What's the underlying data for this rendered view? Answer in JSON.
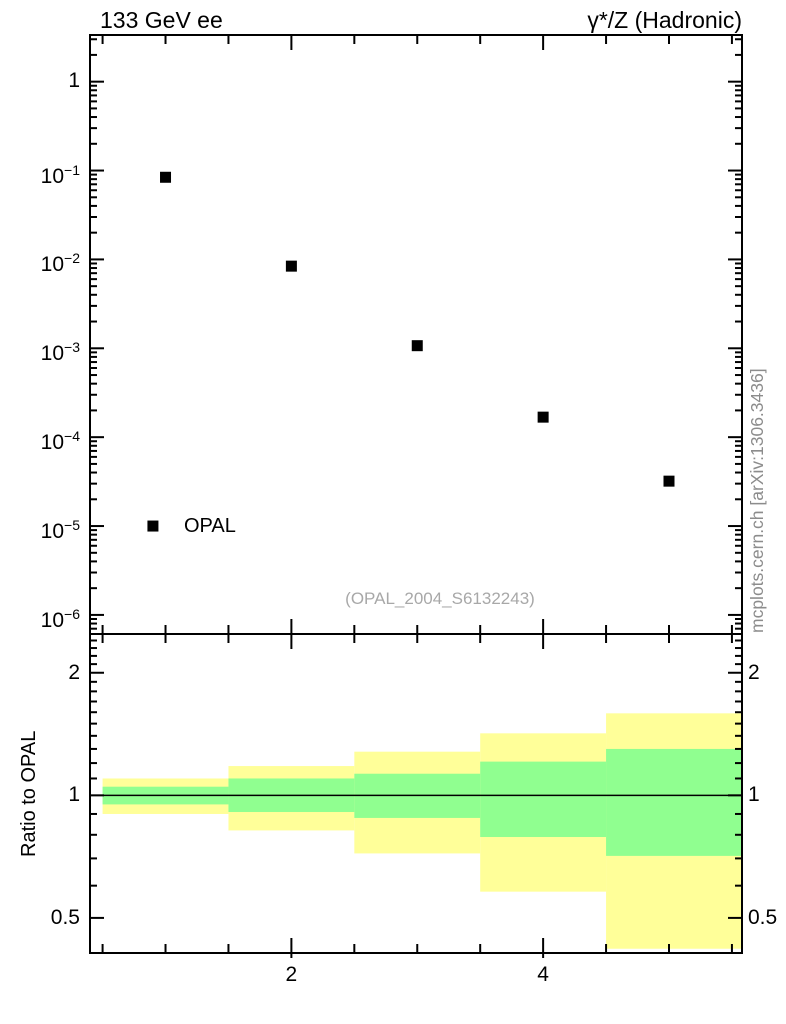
{
  "header": {
    "left_title": "133 GeV ee",
    "right_title": "γ*/Z (Hadronic)"
  },
  "watermark": "(OPAL_2004_S6132243)",
  "side_text": "mcplots.cern.ch [arXiv:1306.3436]",
  "legend": {
    "label": "OPAL",
    "marker": "filled-square"
  },
  "colors": {
    "marker": "#000000",
    "band_outer": "#ffff99",
    "band_inner": "#90ff90",
    "frame": "#000000",
    "gray_text": "#a8a8a8"
  },
  "chart_data": [
    {
      "type": "scatter",
      "title_left": "133 GeV ee",
      "title_right": "γ*/Z (Hadronic)",
      "xscale": "linear",
      "yscale": "log",
      "xlim": [
        0.4,
        5.58
      ],
      "ylim": [
        6.1e-07,
        3.35
      ],
      "grid": false,
      "legend_position": "inside-left-bottom",
      "series": [
        {
          "name": "OPAL",
          "marker": "filled-square",
          "x": [
            1,
            2,
            3,
            4,
            5
          ],
          "y": [
            0.084,
            0.0084,
            0.00107,
            0.000168,
            3.2e-05
          ]
        }
      ],
      "y_tick_exponents": [
        0,
        -1,
        -2,
        -3,
        -4,
        -5,
        -6
      ],
      "x_major_ticks": [
        2,
        4
      ],
      "x_minor_tick_step": 0.5,
      "legend_anchor": {
        "x": 0.9,
        "y": 1e-05
      }
    },
    {
      "type": "band-steps",
      "ylabel": "Ratio to OPAL",
      "xscale": "linear",
      "yscale": "log",
      "xlim": [
        0.4,
        5.58
      ],
      "ylim": [
        0.41,
        2.49
      ],
      "reference_line": 1.0,
      "x_major_ticks": [
        2,
        4
      ],
      "x_minor_tick_step": 0.5,
      "y_major_ticks": [
        {
          "value": 2,
          "label": "2"
        },
        {
          "value": 1,
          "label": "1"
        },
        {
          "value": 0.5,
          "label": "0.5"
        }
      ],
      "y_minor_ticks": [
        0.6,
        0.7,
        0.8,
        0.9,
        1.1,
        1.2,
        1.3,
        1.4,
        1.5,
        1.6,
        1.7,
        1.8,
        1.9,
        2.1,
        2.2,
        2.3,
        2.4
      ],
      "bands": [
        {
          "x0": 0.5,
          "x1": 1.5,
          "outer": [
            0.9,
            1.1
          ],
          "inner": [
            0.95,
            1.05
          ]
        },
        {
          "x0": 1.5,
          "x1": 2.5,
          "outer": [
            0.82,
            1.18
          ],
          "inner": [
            0.91,
            1.1
          ]
        },
        {
          "x0": 2.5,
          "x1": 3.5,
          "outer": [
            0.72,
            1.28
          ],
          "inner": [
            0.88,
            1.13
          ]
        },
        {
          "x0": 3.5,
          "x1": 4.5,
          "outer": [
            0.58,
            1.42
          ],
          "inner": [
            0.79,
            1.21
          ]
        },
        {
          "x0": 4.5,
          "x1": 5.58,
          "outer": [
            0.42,
            1.59
          ],
          "inner": [
            0.71,
            1.3
          ]
        }
      ]
    }
  ]
}
